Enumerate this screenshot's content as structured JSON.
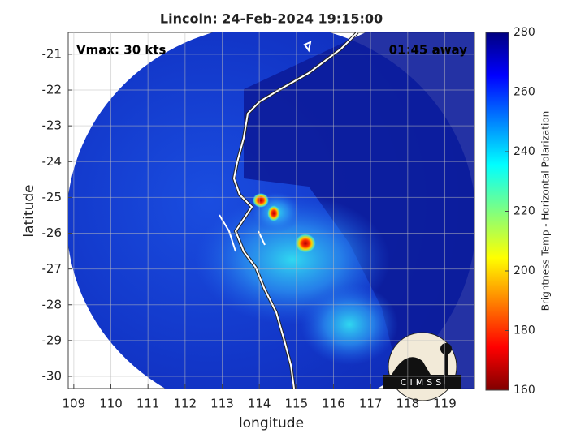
{
  "chart_data": {
    "type": "map",
    "title": "Lincoln: 24-Feb-2024 19:15:00",
    "annotations": [
      "Vmax: 30 kts",
      "01:45 away"
    ],
    "xlabel": "longitude",
    "ylabel": "latitude",
    "xlim": [
      108.85,
      119.8
    ],
    "ylim": [
      -30.34,
      -20.39
    ],
    "xticks": [
      109,
      110,
      111,
      112,
      113,
      114,
      115,
      116,
      117,
      118,
      119
    ],
    "yticks": [
      -30,
      -29,
      -28,
      -27,
      -26,
      -25,
      -24,
      -23,
      -22,
      -21
    ],
    "grid": true,
    "colorbar": {
      "label": "Brightness Temp - Horizontal Polarization",
      "lim": [
        160,
        280
      ],
      "ticks": [
        160,
        180,
        200,
        220,
        240,
        260,
        280
      ]
    },
    "logo": "CIMSS"
  }
}
